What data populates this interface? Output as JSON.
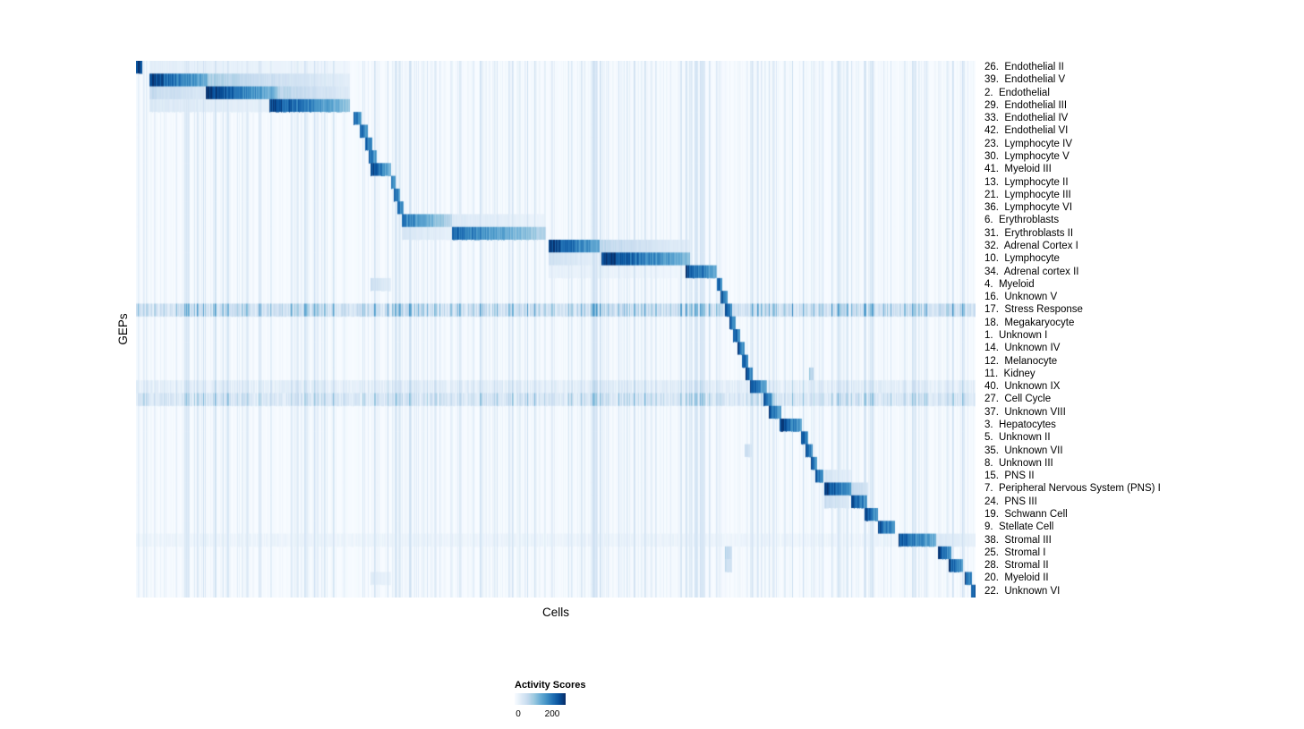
{
  "chart_data": {
    "type": "heatmap",
    "title": "",
    "xlabel": "Cells",
    "ylabel": "GEPs",
    "colormap": "Blues",
    "colormap_stops": [
      "#f7fbff",
      "#deebf7",
      "#c6dbef",
      "#9ecae1",
      "#6baed6",
      "#4292c6",
      "#2171b5",
      "#08519c",
      "#08306b"
    ],
    "value_range": [
      0,
      200
    ],
    "legend": {
      "title": "Activity Scores",
      "tick_labels": [
        "0",
        "200"
      ],
      "ticks": [
        0,
        200
      ]
    },
    "block_format": "each block = [x_start_fraction, x_end_fraction, intensity_start, intensity_end] with intensity normalized 0-1 on the 0-200+ activity color scale; stripes = amplitude of row-wide vertical striping",
    "rows": [
      {
        "label": "26.  Endothelial II",
        "blocks": [
          [
            0.0,
            0.007,
            1.0,
            0.85
          ],
          [
            0.015,
            0.254,
            0.1,
            0.04
          ]
        ]
      },
      {
        "label": "39.  Endothelial V",
        "blocks": [
          [
            0.015,
            0.085,
            0.92,
            0.5
          ],
          [
            0.085,
            0.16,
            0.35,
            0.2
          ],
          [
            0.16,
            0.254,
            0.22,
            0.1
          ]
        ]
      },
      {
        "label": "2.  Endothelial",
        "blocks": [
          [
            0.015,
            0.083,
            0.25,
            0.15
          ],
          [
            0.083,
            0.168,
            0.95,
            0.45
          ],
          [
            0.168,
            0.254,
            0.3,
            0.12
          ]
        ]
      },
      {
        "label": "29.  Endothelial III",
        "blocks": [
          [
            0.015,
            0.158,
            0.14,
            0.08
          ],
          [
            0.158,
            0.254,
            0.92,
            0.4
          ]
        ]
      },
      {
        "label": "33.  Endothelial IV",
        "blocks": [
          [
            0.259,
            0.268,
            0.85,
            0.55
          ]
        ]
      },
      {
        "label": "42.  Endothelial VI",
        "blocks": [
          [
            0.266,
            0.276,
            0.82,
            0.55
          ]
        ]
      },
      {
        "label": "23.  Lymphocyte IV",
        "blocks": [
          [
            0.272,
            0.281,
            0.82,
            0.55
          ]
        ]
      },
      {
        "label": "30.  Lymphocyte V",
        "blocks": [
          [
            0.277,
            0.286,
            0.82,
            0.55
          ]
        ]
      },
      {
        "label": "41.  Myeloid III",
        "blocks": [
          [
            0.279,
            0.303,
            0.95,
            0.45
          ]
        ]
      },
      {
        "label": "13.  Lymphocyte II",
        "blocks": [
          [
            0.303,
            0.309,
            0.82,
            0.55
          ]
        ]
      },
      {
        "label": "21.  Lymphocyte III",
        "blocks": [
          [
            0.307,
            0.314,
            0.82,
            0.55
          ]
        ]
      },
      {
        "label": "36.  Lymphocyte VI",
        "blocks": [
          [
            0.311,
            0.318,
            0.82,
            0.55
          ]
        ]
      },
      {
        "label": "6.  Erythroblasts",
        "blocks": [
          [
            0.316,
            0.376,
            0.72,
            0.28
          ],
          [
            0.376,
            0.488,
            0.14,
            0.06
          ]
        ]
      },
      {
        "label": "31.  Erythroblasts II",
        "blocks": [
          [
            0.316,
            0.376,
            0.16,
            0.08
          ],
          [
            0.376,
            0.488,
            0.78,
            0.3
          ]
        ]
      },
      {
        "label": "32.  Adrenal Cortex I",
        "blocks": [
          [
            0.491,
            0.552,
            0.95,
            0.5
          ],
          [
            0.552,
            0.659,
            0.28,
            0.1
          ]
        ]
      },
      {
        "label": "10.  Lymphocyte",
        "blocks": [
          [
            0.491,
            0.554,
            0.2,
            0.08
          ],
          [
            0.554,
            0.659,
            0.95,
            0.45
          ]
        ]
      },
      {
        "label": "34.  Adrenal cortex II",
        "blocks": [
          [
            0.491,
            0.654,
            0.08,
            0.04
          ],
          [
            0.654,
            0.691,
            0.92,
            0.5
          ]
        ]
      },
      {
        "label": "4.  Myeloid",
        "blocks": [
          [
            0.279,
            0.303,
            0.22,
            0.1
          ],
          [
            0.691,
            0.698,
            0.9,
            0.6
          ]
        ]
      },
      {
        "label": "16.  Unknown V",
        "blocks": [
          [
            0.696,
            0.704,
            0.88,
            0.6
          ]
        ]
      },
      {
        "label": "17.  Stress Response",
        "stripes": 0.3,
        "blocks": [
          [
            0.701,
            0.709,
            0.92,
            0.6
          ]
        ]
      },
      {
        "label": "18.  Megakaryocyte",
        "blocks": [
          [
            0.706,
            0.714,
            0.88,
            0.6
          ]
        ]
      },
      {
        "label": "1.  Unknown I",
        "blocks": [
          [
            0.711,
            0.719,
            0.88,
            0.6
          ]
        ]
      },
      {
        "label": "14.  Unknown IV",
        "blocks": [
          [
            0.716,
            0.724,
            0.88,
            0.6
          ]
        ]
      },
      {
        "label": "12.  Melanocyte",
        "blocks": [
          [
            0.721,
            0.729,
            0.88,
            0.6
          ]
        ]
      },
      {
        "label": "11.  Kidney",
        "blocks": [
          [
            0.726,
            0.734,
            0.88,
            0.6
          ],
          [
            0.801,
            0.807,
            0.35,
            0.25
          ]
        ]
      },
      {
        "label": "40.  Unknown IX",
        "stripes": 0.14,
        "blocks": [
          [
            0.731,
            0.751,
            0.88,
            0.5
          ]
        ]
      },
      {
        "label": "27.  Cell Cycle",
        "stripes": 0.22,
        "blocks": [
          [
            0.747,
            0.757,
            0.92,
            0.6
          ]
        ]
      },
      {
        "label": "37.  Unknown VIII",
        "blocks": [
          [
            0.753,
            0.768,
            0.9,
            0.55
          ]
        ]
      },
      {
        "label": "3.  Hepatocytes",
        "blocks": [
          [
            0.766,
            0.793,
            0.95,
            0.55
          ]
        ]
      },
      {
        "label": "5.  Unknown II",
        "blocks": [
          [
            0.792,
            0.8,
            0.88,
            0.6
          ]
        ]
      },
      {
        "label": "35.  Unknown VII",
        "blocks": [
          [
            0.724,
            0.734,
            0.25,
            0.15
          ],
          [
            0.797,
            0.805,
            0.88,
            0.6
          ]
        ]
      },
      {
        "label": "8.  Unknown III",
        "blocks": [
          [
            0.803,
            0.811,
            0.88,
            0.6
          ]
        ]
      },
      {
        "label": "15.  PNS II",
        "blocks": [
          [
            0.809,
            0.818,
            0.88,
            0.6
          ],
          [
            0.819,
            0.851,
            0.18,
            0.08
          ]
        ]
      },
      {
        "label": "7.  Peripheral Nervous System (PNS) I",
        "blocks": [
          [
            0.819,
            0.851,
            0.95,
            0.55
          ],
          [
            0.851,
            0.872,
            0.3,
            0.15
          ]
        ]
      },
      {
        "label": "24.  PNS III",
        "blocks": [
          [
            0.819,
            0.849,
            0.25,
            0.12
          ],
          [
            0.851,
            0.87,
            0.9,
            0.6
          ]
        ]
      },
      {
        "label": "19.  Schwann Cell",
        "blocks": [
          [
            0.867,
            0.883,
            0.9,
            0.55
          ]
        ]
      },
      {
        "label": "9.  Stellate Cell",
        "blocks": [
          [
            0.883,
            0.904,
            0.9,
            0.55
          ]
        ]
      },
      {
        "label": "38.  Stromal III",
        "stripes": 0.08,
        "blocks": [
          [
            0.908,
            0.953,
            0.9,
            0.45
          ],
          [
            0.953,
            1.0,
            0.15,
            0.08
          ]
        ]
      },
      {
        "label": "25.  Stromal I",
        "blocks": [
          [
            0.701,
            0.709,
            0.3,
            0.2
          ],
          [
            0.955,
            0.971,
            0.9,
            0.55
          ]
        ]
      },
      {
        "label": "28.  Stromal II",
        "blocks": [
          [
            0.701,
            0.709,
            0.25,
            0.18
          ],
          [
            0.968,
            0.985,
            0.9,
            0.55
          ]
        ]
      },
      {
        "label": "20.  Myeloid II",
        "blocks": [
          [
            0.279,
            0.303,
            0.12,
            0.06
          ],
          [
            0.987,
            0.995,
            0.9,
            0.65
          ]
        ]
      },
      {
        "label": "22.  Unknown VI",
        "blocks": [
          [
            0.994,
            1.0,
            0.95,
            0.75
          ]
        ]
      }
    ]
  }
}
